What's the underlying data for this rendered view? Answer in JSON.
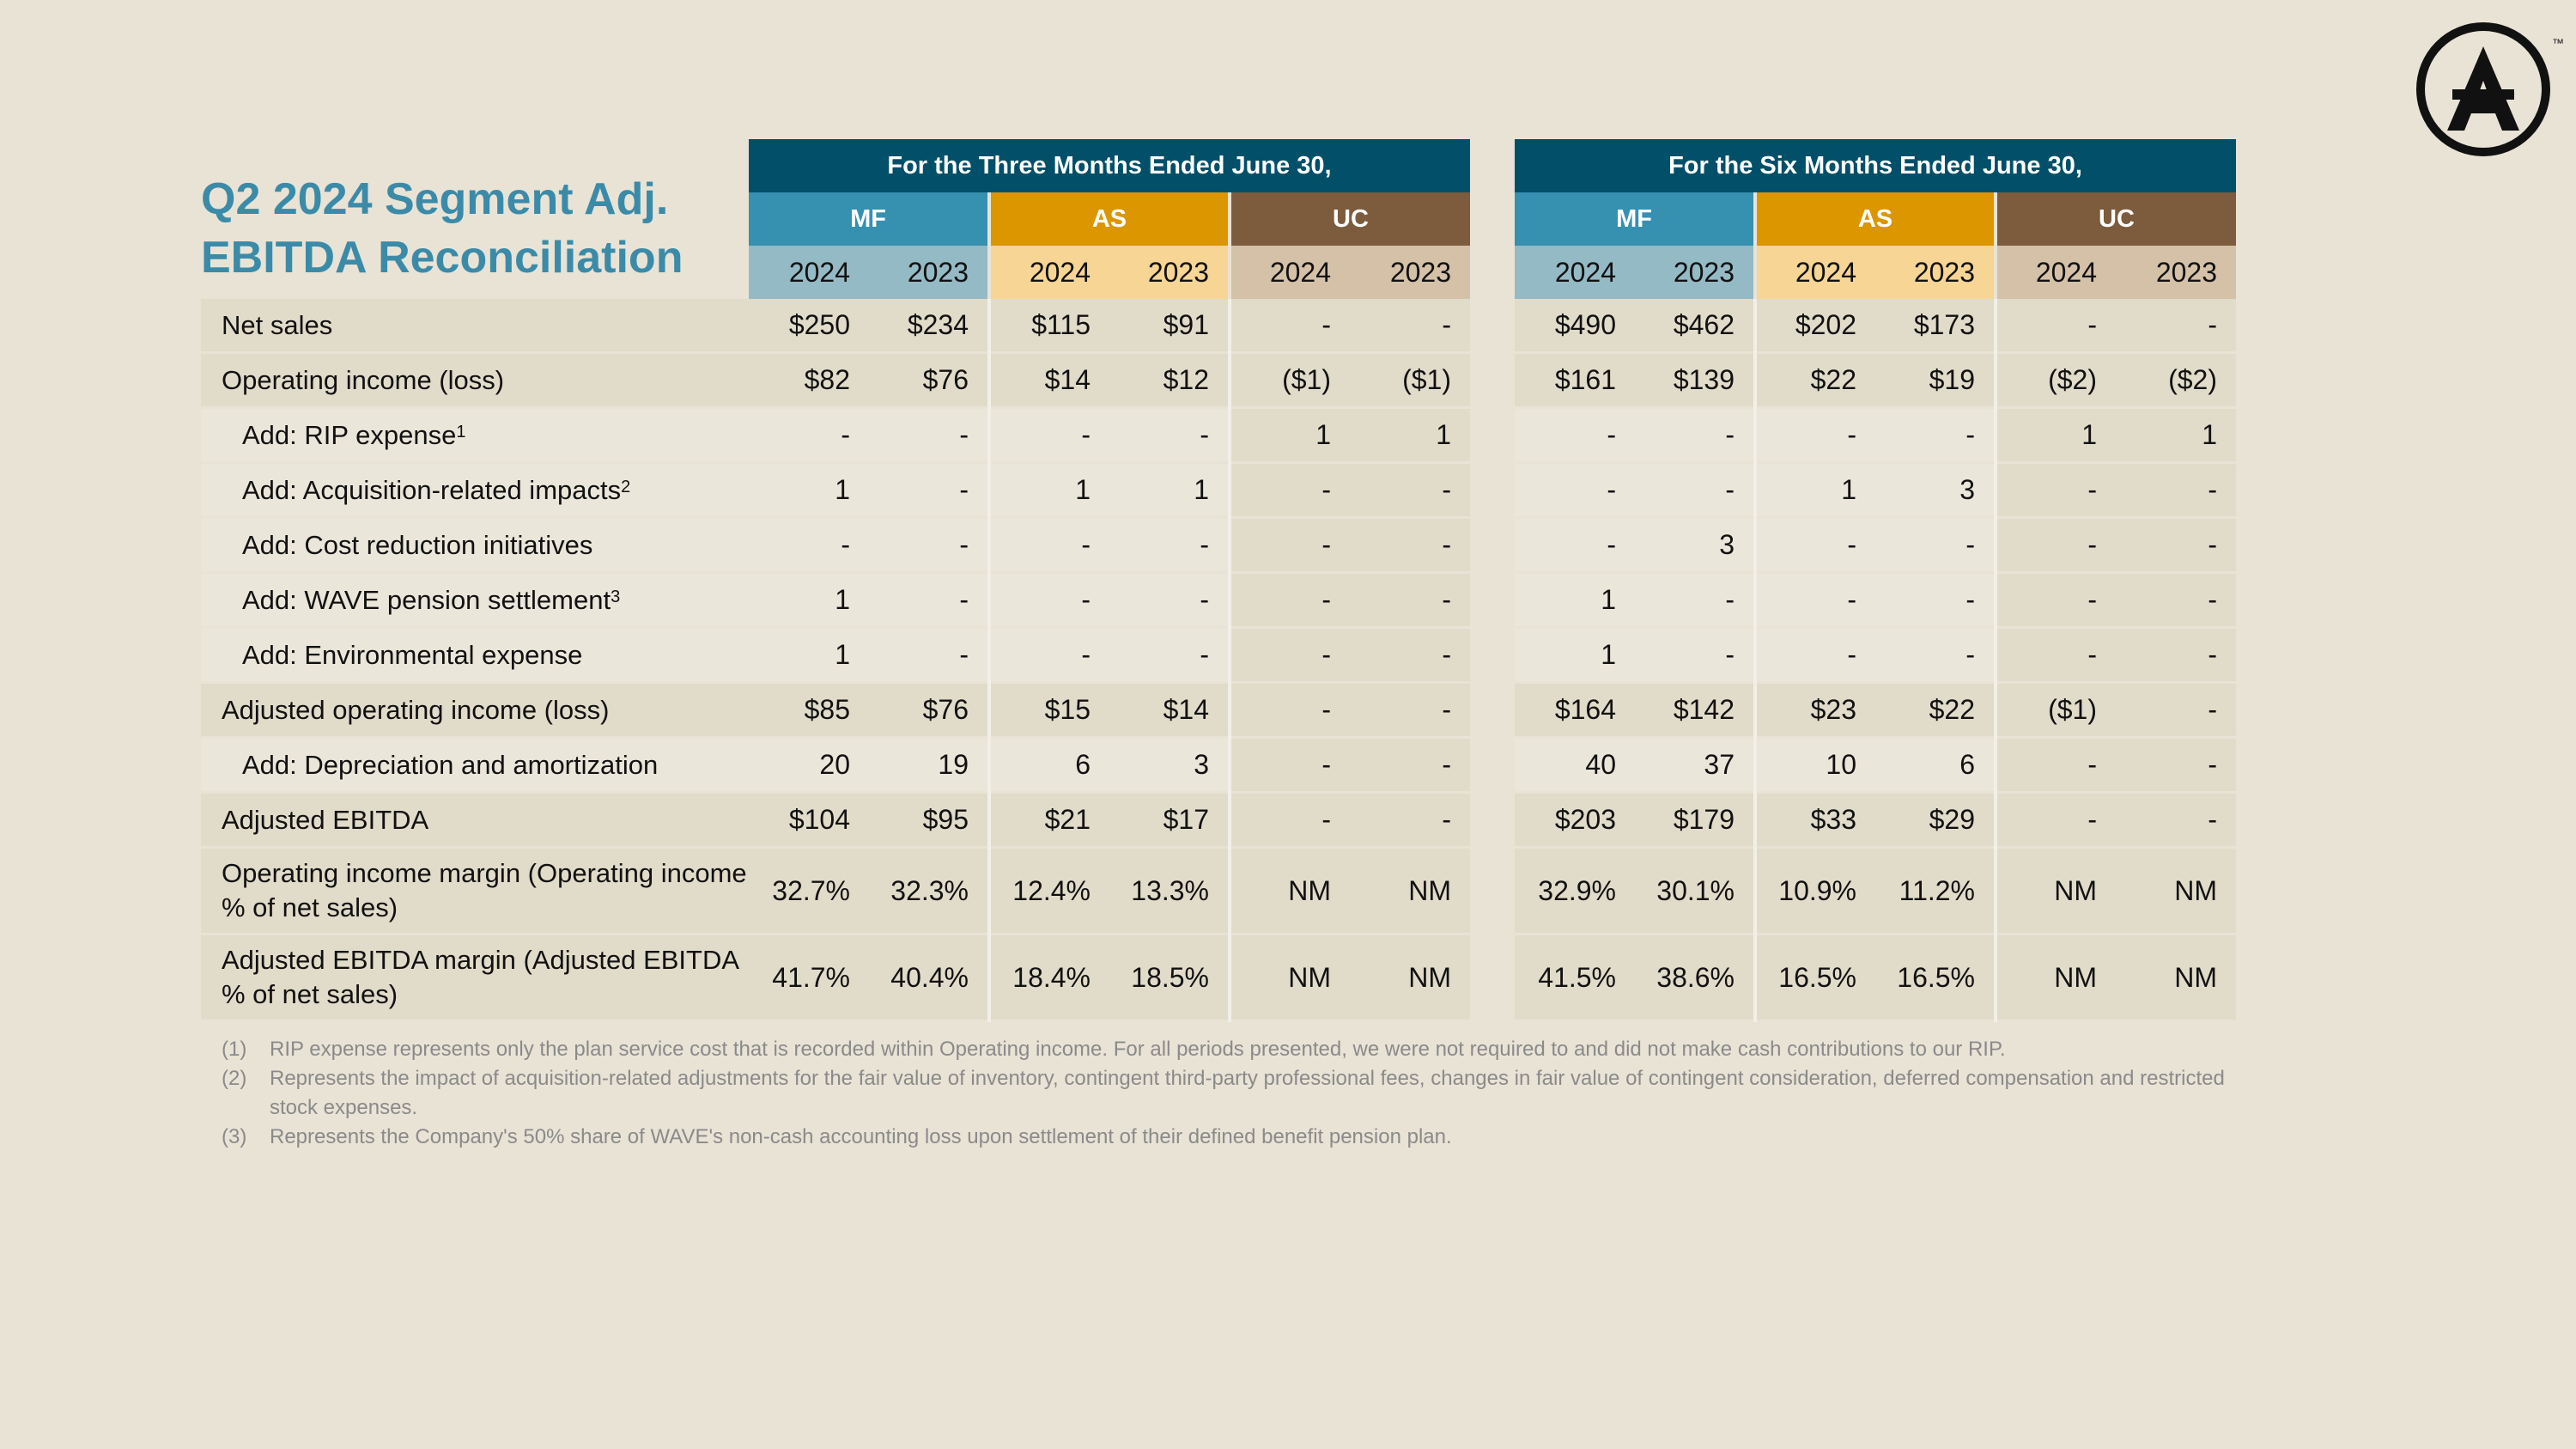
{
  "title": "Q2 2024 Segment Adj. EBITDA Reconciliation",
  "periods": [
    "For the Three Months Ended June 30,",
    "For the Six Months Ended June 30,"
  ],
  "segments": [
    "MF",
    "AS",
    "UC"
  ],
  "years": [
    "2024",
    "2023"
  ],
  "colors": {
    "period_header": "#014f68",
    "mf": "#3690af",
    "as": "#db9600",
    "uc": "#7c5c3d",
    "title": "#3b8ba8"
  },
  "rows": [
    {
      "label": "Net sales",
      "sup": "",
      "indent": false,
      "shade": true,
      "values": [
        "$250",
        "$234",
        "$115",
        "$91",
        "-",
        "-",
        "$490",
        "$462",
        "$202",
        "$173",
        "-",
        "-"
      ]
    },
    {
      "label": "Operating income (loss)",
      "sup": "",
      "indent": false,
      "shade": true,
      "values": [
        "$82",
        "$76",
        "$14",
        "$12",
        "($1)",
        "($1)",
        "$161",
        "$139",
        "$22",
        "$19",
        "($2)",
        "($2)"
      ]
    },
    {
      "label": "Add: RIP expense",
      "sup": "1",
      "indent": true,
      "shade": false,
      "values": [
        "-",
        "-",
        "-",
        "-",
        "1",
        "1",
        "-",
        "-",
        "-",
        "-",
        "1",
        "1"
      ]
    },
    {
      "label": "Add: Acquisition-related impacts",
      "sup": "2",
      "indent": true,
      "shade": false,
      "values": [
        "1",
        "-",
        "1",
        "1",
        "-",
        "-",
        "-",
        "-",
        "1",
        "3",
        "-",
        "-"
      ]
    },
    {
      "label": "Add: Cost reduction initiatives",
      "sup": "",
      "indent": true,
      "shade": false,
      "values": [
        "-",
        "-",
        "-",
        "-",
        "-",
        "-",
        "-",
        "3",
        "-",
        "-",
        "-",
        "-"
      ]
    },
    {
      "label": "Add: WAVE pension settlement",
      "sup": "3",
      "indent": true,
      "shade": false,
      "values": [
        "1",
        "-",
        "-",
        "-",
        "-",
        "-",
        "1",
        "-",
        "-",
        "-",
        "-",
        "-"
      ]
    },
    {
      "label": "Add: Environmental expense",
      "sup": "",
      "indent": true,
      "shade": false,
      "values": [
        "1",
        "-",
        "-",
        "-",
        "-",
        "-",
        "1",
        "-",
        "-",
        "-",
        "-",
        "-"
      ]
    },
    {
      "label": "Adjusted operating income (loss)",
      "sup": "",
      "indent": false,
      "shade": true,
      "values": [
        "$85",
        "$76",
        "$15",
        "$14",
        "-",
        "-",
        "$164",
        "$142",
        "$23",
        "$22",
        "($1)",
        "-"
      ]
    },
    {
      "label": "Add: Depreciation and amortization",
      "sup": "",
      "indent": true,
      "shade": false,
      "values": [
        "20",
        "19",
        "6",
        "3",
        "-",
        "-",
        "40",
        "37",
        "10",
        "6",
        "-",
        "-"
      ]
    },
    {
      "label": "Adjusted EBITDA",
      "sup": "",
      "indent": false,
      "shade": true,
      "values": [
        "$104",
        "$95",
        "$21",
        "$17",
        "-",
        "-",
        "$203",
        "$179",
        "$33",
        "$29",
        "-",
        "-"
      ]
    },
    {
      "label": "Operating income margin (Operating income % of net sales)",
      "sup": "",
      "indent": false,
      "shade": true,
      "values": [
        "32.7%",
        "32.3%",
        "12.4%",
        "13.3%",
        "NM",
        "NM",
        "32.9%",
        "30.1%",
        "10.9%",
        "11.2%",
        "NM",
        "NM"
      ]
    },
    {
      "label": "Adjusted EBITDA margin (Adjusted EBITDA % of net sales)",
      "sup": "",
      "indent": false,
      "shade": true,
      "values": [
        "41.7%",
        "40.4%",
        "18.4%",
        "18.5%",
        "NM",
        "NM",
        "41.5%",
        "38.6%",
        "16.5%",
        "16.5%",
        "NM",
        "NM"
      ]
    }
  ],
  "footnotes": [
    {
      "num": "(1)",
      "text": "RIP expense represents only the plan service cost that is recorded within Operating income. For all periods presented, we were not required to and did not make cash contributions to our RIP."
    },
    {
      "num": "(2)",
      "text": "Represents the impact of acquisition-related adjustments for the fair value of inventory, contingent third-party professional fees, changes in fair value of contingent consideration, deferred compensation and restricted stock expenses."
    },
    {
      "num": "(3)",
      "text": "Represents the Company's 50% share of WAVE's non-cash accounting loss upon settlement of their defined benefit pension plan."
    }
  ],
  "logo": {
    "icon": "company-a-logo-icon",
    "trademark": "™"
  }
}
